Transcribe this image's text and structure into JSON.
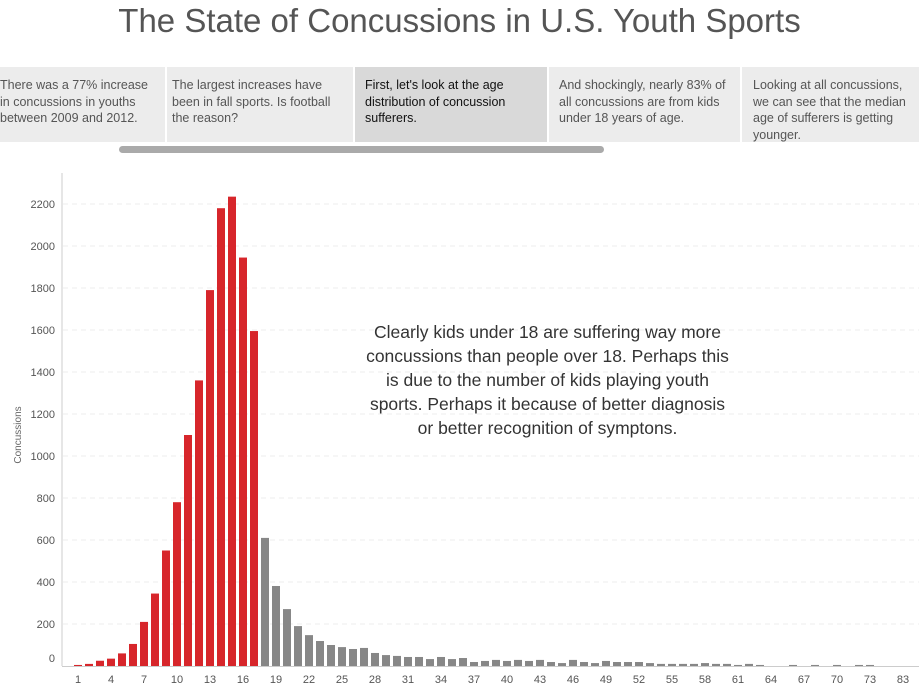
{
  "title": "The State of Concussions in U.S. Youth Sports",
  "story_points": [
    "There was a 77% increase in concussions in youths between 2009 and 2012.",
    "The largest increases have been in fall sports. Is football the reason?",
    "First, let's look at the age distribution of concussion sufferers.",
    "And shockingly, nearly 83% of all concussions are from kids under 18 years of age.",
    "Looking at all concussions, we can see that the median age of sufferers is getting younger."
  ],
  "active_story_point": 2,
  "annotation": "Clearly kids under 18 are suffering way more concussions than people over 18. Perhaps this is due to the number of kids playing youth sports. Perhaps it because of better diagnosis or better recognition of symptons.",
  "colors": {
    "under_18": "#d7262b",
    "over_18": "#878787"
  },
  "chart_data": {
    "type": "bar",
    "ylabel": "Concussions",
    "xlabel": "",
    "ylim": [
      0,
      2300
    ],
    "yticks": [
      0,
      200,
      400,
      600,
      800,
      1000,
      1200,
      1400,
      1600,
      1800,
      2000,
      2200
    ],
    "xtick_labels": [
      "1",
      "4",
      "7",
      "10",
      "13",
      "16",
      "19",
      "22",
      "25",
      "28",
      "31",
      "34",
      "37",
      "40",
      "43",
      "46",
      "49",
      "52",
      "55",
      "58",
      "61",
      "64",
      "67",
      "70",
      "73",
      "83"
    ],
    "grid": "horizontal dashed",
    "categories": [
      1,
      2,
      3,
      4,
      5,
      6,
      7,
      8,
      9,
      10,
      11,
      12,
      13,
      14,
      15,
      16,
      17,
      18,
      19,
      20,
      21,
      22,
      23,
      24,
      25,
      26,
      27,
      28,
      29,
      30,
      31,
      32,
      33,
      34,
      35,
      36,
      37,
      38,
      39,
      40,
      41,
      42,
      43,
      44,
      45,
      46,
      47,
      48,
      49,
      50,
      51,
      52,
      53,
      54,
      55,
      56,
      57,
      58,
      59,
      60,
      61,
      62,
      63,
      64,
      65,
      66,
      67,
      68,
      69,
      70,
      71,
      72,
      73,
      77,
      80,
      83
    ],
    "values": [
      5,
      10,
      25,
      35,
      60,
      105,
      210,
      345,
      550,
      780,
      1100,
      1360,
      1790,
      2180,
      2235,
      1945,
      1595,
      610,
      381,
      271,
      190,
      147,
      119,
      100,
      90,
      81,
      86,
      62,
      52,
      48,
      43,
      43,
      33,
      43,
      33,
      38,
      19,
      24,
      29,
      24,
      29,
      24,
      29,
      19,
      14,
      29,
      19,
      14,
      24,
      19,
      19,
      19,
      14,
      10,
      10,
      10,
      10,
      14,
      10,
      10,
      5,
      10,
      5,
      0,
      0,
      5,
      0,
      5,
      0,
      5,
      0,
      5,
      5,
      0,
      0,
      0
    ],
    "color_rule": "age < 18 red, age >= 18 gray"
  }
}
